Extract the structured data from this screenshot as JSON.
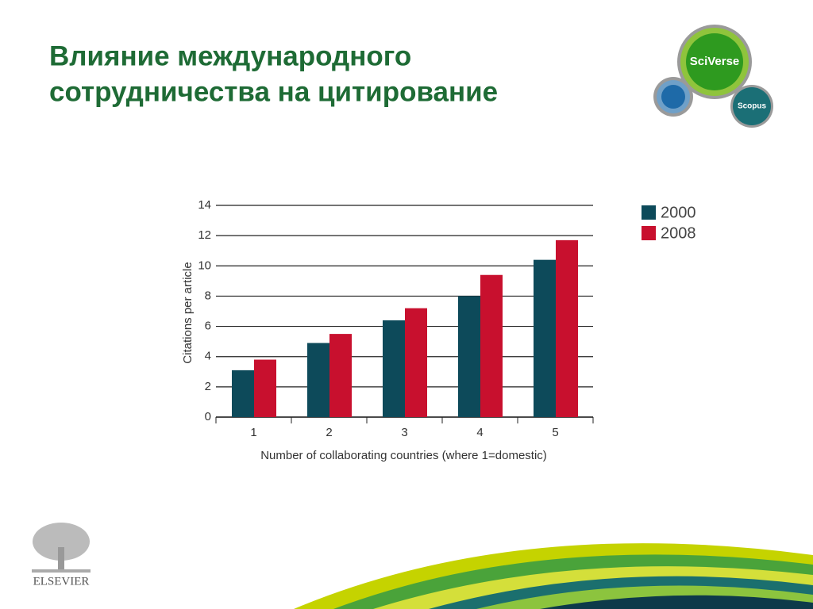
{
  "slide": {
    "title": [
      "Влияние международного",
      "сотрудничества на цитирование"
    ],
    "logos": [
      "SciVerse",
      "Scopus",
      "ELSEVIER"
    ]
  },
  "chart_data": {
    "type": "bar",
    "x_label": "Number of collaborating countries (where 1=domestic)",
    "y_label": "Citations per article",
    "categories": [
      "1",
      "2",
      "3",
      "4",
      "5"
    ],
    "series": [
      {
        "name": "2000",
        "color": "#0d4a5a",
        "values": [
          3.1,
          4.9,
          6.4,
          8.0,
          10.4
        ]
      },
      {
        "name": "2008",
        "color": "#c8102e",
        "values": [
          3.8,
          5.5,
          7.2,
          9.4,
          11.7
        ]
      }
    ],
    "ylim": [
      0,
      14
    ],
    "yticks": [
      0,
      2,
      4,
      6,
      8,
      10,
      12,
      14
    ],
    "grid": true,
    "legend": "right"
  }
}
